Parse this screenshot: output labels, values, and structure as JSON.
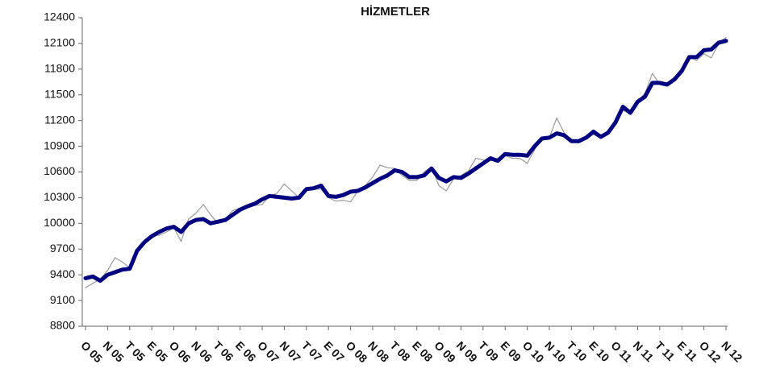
{
  "chart_data": {
    "type": "line",
    "title": "HİZMETLER",
    "categories": [
      "O 05",
      null,
      null,
      "N 05",
      null,
      null,
      "T 05",
      null,
      null,
      "E 05",
      null,
      null,
      "O 06",
      null,
      null,
      "N 06",
      null,
      null,
      "T 06",
      null,
      null,
      "E 06",
      null,
      null,
      "O 07",
      null,
      null,
      "N 07",
      null,
      null,
      "T 07",
      null,
      null,
      "E 07",
      null,
      null,
      "O 08",
      null,
      null,
      "N 08",
      null,
      null,
      "T 08",
      null,
      null,
      "E 08",
      null,
      null,
      "O 09",
      null,
      null,
      "N 09",
      null,
      null,
      "T 09",
      null,
      null,
      "E 09",
      null,
      null,
      "O 10",
      null,
      null,
      "N 10",
      null,
      null,
      "T 10",
      null,
      null,
      "E 10",
      null,
      null,
      "O 11",
      null,
      null,
      "N 11",
      null,
      null,
      "T 11",
      null,
      null,
      "E 11",
      null,
      null,
      "O 12",
      null,
      null,
      "N 12"
    ],
    "series": [
      {
        "color": "#9a9a9a",
        "width": 1.2,
        "values": [
          9250,
          9300,
          9350,
          9450,
          9600,
          9550,
          9480,
          9700,
          9800,
          9870,
          9860,
          9900,
          9950,
          9790,
          10050,
          10120,
          10220,
          10100,
          10000,
          10050,
          10150,
          10180,
          10190,
          10210,
          10220,
          10320,
          10350,
          10460,
          10380,
          10300,
          10420,
          10400,
          10400,
          10300,
          10260,
          10270,
          10250,
          10380,
          10440,
          10540,
          10680,
          10650,
          10640,
          10560,
          10500,
          10500,
          10600,
          10660,
          10440,
          10380,
          10520,
          10560,
          10610,
          10760,
          10740,
          10730,
          10760,
          10790,
          10760,
          10760,
          10700,
          10860,
          10990,
          11000,
          11230,
          11060,
          10950,
          10940,
          11000,
          11040,
          10990,
          11050,
          11200,
          11320,
          11280,
          11420,
          11520,
          11750,
          11620,
          11600,
          11700,
          11780,
          11950,
          11900,
          11980,
          11930,
          12100,
          12170
        ]
      },
      {
        "color": "#000080",
        "width": 5,
        "values": [
          9360,
          9380,
          9330,
          9400,
          9430,
          9460,
          9470,
          9680,
          9780,
          9850,
          9900,
          9940,
          9960,
          9900,
          10000,
          10040,
          10050,
          10000,
          10020,
          10040,
          10100,
          10160,
          10200,
          10230,
          10280,
          10320,
          10310,
          10300,
          10290,
          10300,
          10400,
          10410,
          10440,
          10320,
          10310,
          10330,
          10370,
          10380,
          10420,
          10470,
          10520,
          10560,
          10620,
          10600,
          10540,
          10540,
          10560,
          10640,
          10530,
          10490,
          10540,
          10530,
          10580,
          10640,
          10700,
          10760,
          10730,
          10810,
          10800,
          10800,
          10790,
          10900,
          10990,
          11000,
          11050,
          11030,
          10960,
          10960,
          11000,
          11070,
          11010,
          11060,
          11180,
          11360,
          11290,
          11420,
          11480,
          11640,
          11640,
          11620,
          11680,
          11780,
          11940,
          11940,
          12020,
          12030,
          12110,
          12130
        ]
      }
    ],
    "ylim": [
      8800,
      12400
    ],
    "yticks": [
      8800,
      9100,
      9400,
      9700,
      10000,
      10300,
      10600,
      10900,
      11200,
      11500,
      11800,
      12100,
      12400
    ],
    "grid": false
  }
}
